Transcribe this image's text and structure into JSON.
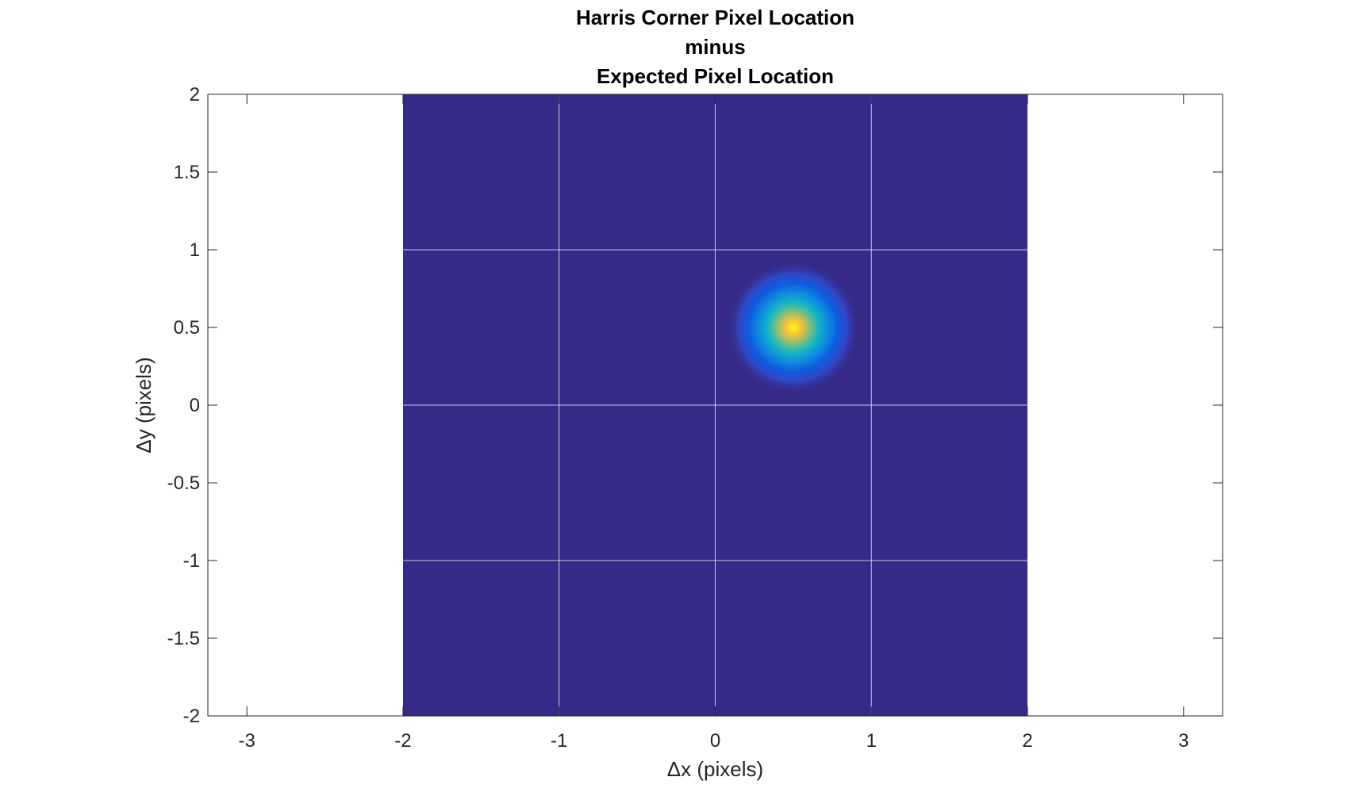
{
  "chart_data": {
    "type": "heatmap",
    "title": [
      "Harris Corner Pixel Location",
      "minus",
      "Expected Pixel Location"
    ],
    "xlabel": "Δx (pixels)",
    "ylabel": "Δy (pixels)",
    "xlim": [
      -3.25,
      3.25
    ],
    "ylim": [
      -2,
      2
    ],
    "xticks": [
      -3,
      -2,
      -1,
      0,
      1,
      2,
      3
    ],
    "xtick_labels": [
      "-3",
      "-2",
      "-1",
      "0",
      "1",
      "2",
      "3"
    ],
    "yticks": [
      -2,
      -1.5,
      -1,
      -0.5,
      0,
      0.5,
      1,
      1.5,
      2
    ],
    "ytick_labels": [
      "-2",
      "-1.5",
      "-1",
      "-0.5",
      "0",
      "0.5",
      "1",
      "1.5",
      "2"
    ],
    "grid": true,
    "data_extent": {
      "x": [
        -2,
        2
      ],
      "y": [
        -2,
        2
      ]
    },
    "background_color": "#352A87",
    "peak": {
      "x": 0.5,
      "y": 0.5,
      "sigma": 0.18
    },
    "colormap": "parula"
  }
}
